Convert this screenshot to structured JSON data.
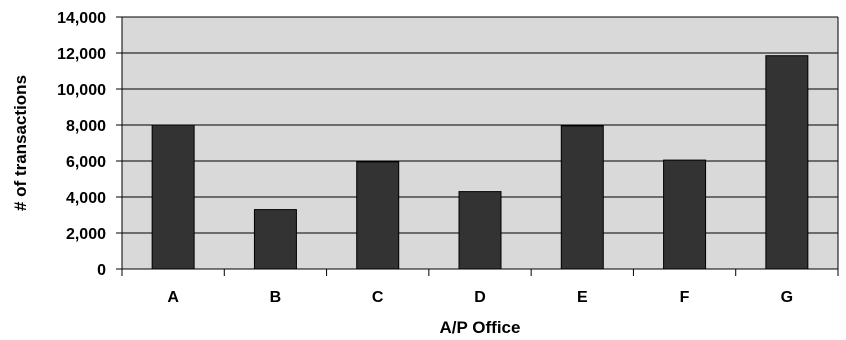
{
  "chart_data": {
    "type": "bar",
    "title": "",
    "xlabel": "A/P Office",
    "ylabel": "# of transactions",
    "categories": [
      "A",
      "B",
      "C",
      "D",
      "E",
      "F",
      "G"
    ],
    "values": [
      8000,
      3300,
      5950,
      4300,
      7950,
      6050,
      11850
    ],
    "ylim": [
      0,
      14000
    ],
    "yticks": [
      0,
      2000,
      4000,
      6000,
      8000,
      10000,
      12000,
      14000
    ],
    "ytick_labels": [
      "0",
      "2,000",
      "4,000",
      "6,000",
      "8,000",
      "10,000",
      "12,000",
      "14,000"
    ],
    "grid": true,
    "legend": "none",
    "colors": {
      "bar": "#333333",
      "plot_background": "#d9d9d9",
      "gridline": "#000000"
    }
  }
}
